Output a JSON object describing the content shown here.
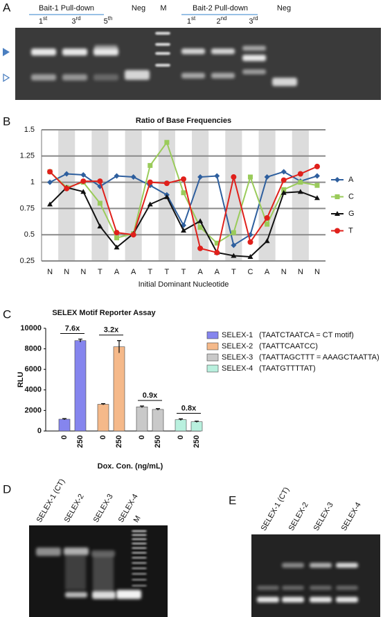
{
  "panel_a": {
    "label": "A",
    "groups": [
      {
        "title": "Bait-1 Pull-down",
        "lanes": [
          {
            "n": "1",
            "sup": "st"
          },
          {
            "n": "3",
            "sup": "rd"
          },
          {
            "n": "5",
            "sup": "th"
          }
        ]
      },
      {
        "title": "Bait-2 Pull-down",
        "lanes": [
          {
            "n": "1",
            "sup": "st"
          },
          {
            "n": "2",
            "sup": "nd"
          },
          {
            "n": "3",
            "sup": "rd"
          }
        ]
      }
    ],
    "neg_1": "Neg",
    "marker": "M",
    "neg_2": "Neg"
  },
  "chart_data": [
    {
      "type": "line",
      "panel": "B",
      "title": "Ratio of Base Frequencies",
      "x_label": "Initial Dominant Nucleotide",
      "categories": [
        "N",
        "N",
        "N",
        "T",
        "A",
        "A",
        "T",
        "T",
        "T",
        "A",
        "A",
        "T",
        "C",
        "A",
        "N",
        "N",
        "N"
      ],
      "ylim": [
        0.25,
        1.5
      ],
      "yticks": [
        0.25,
        0.5,
        0.75,
        1,
        1.25,
        1.5
      ],
      "grid": true,
      "legend": "right",
      "series": [
        {
          "name": "A",
          "color": "#2e5f9e",
          "marker": "diamond",
          "values": [
            1.0,
            1.08,
            1.07,
            0.96,
            1.06,
            1.05,
            0.97,
            0.88,
            0.59,
            1.05,
            1.06,
            0.4,
            0.5,
            1.05,
            1.1,
            1.01,
            1.06
          ]
        },
        {
          "name": "C",
          "color": "#9acb5a",
          "marker": "square",
          "values": [
            1.1,
            0.95,
            1.0,
            0.8,
            0.47,
            0.51,
            1.16,
            1.38,
            0.9,
            0.57,
            0.42,
            0.52,
            1.05,
            0.6,
            0.93,
            1.0,
            0.97
          ]
        },
        {
          "name": "G",
          "color": "#111111",
          "marker": "triangle",
          "values": [
            0.79,
            0.95,
            0.91,
            0.58,
            0.38,
            0.51,
            0.79,
            0.86,
            0.54,
            0.63,
            0.33,
            0.3,
            0.29,
            0.44,
            0.9,
            0.91,
            0.85
          ]
        },
        {
          "name": "T",
          "color": "#e0201b",
          "marker": "circle",
          "values": [
            1.1,
            0.94,
            1.01,
            1.01,
            0.52,
            0.5,
            1.0,
            0.99,
            1.03,
            0.37,
            0.33,
            1.05,
            0.43,
            0.66,
            1.02,
            1.08,
            1.15
          ]
        }
      ]
    },
    {
      "type": "bar",
      "panel": "C",
      "title": "SELEX Motif Reporter Assay",
      "x_label": "Dox. Con. (ng/mL)",
      "y_label": "RLU",
      "categories": [
        "0",
        "250"
      ],
      "ylim": [
        0,
        10000
      ],
      "yticks": [
        0,
        2000,
        4000,
        6000,
        8000,
        10000
      ],
      "legend": "right",
      "series": [
        {
          "name": "SELEX-1",
          "description": "(TAATCTAATCA = CT motif)",
          "color": "#8585ee",
          "values": [
            1150,
            8800
          ],
          "errors": [
            60,
            150
          ],
          "fold": "7.6x"
        },
        {
          "name": "SELEX-2",
          "description": "(TAATTCAATCC)",
          "color": "#f5b98a",
          "values": [
            2600,
            8200
          ],
          "errors": [
            60,
            600
          ],
          "fold": "3.2x"
        },
        {
          "name": "SELEX-3",
          "description": "(TAATTAGCTTT = AAAGCTAATTA)",
          "color": "#c9c9c9",
          "values": [
            2350,
            2100
          ],
          "errors": [
            80,
            80
          ],
          "fold": "0.9x"
        },
        {
          "name": "SELEX-4",
          "description": "(TAATGTTTTAT)",
          "color": "#b9f0de",
          "values": [
            1100,
            900
          ],
          "errors": [
            80,
            60
          ],
          "fold": "0.8x"
        }
      ]
    }
  ],
  "panel_d": {
    "label": "D",
    "lanes": [
      "SELEX-1 (CT)",
      "SELEX-2",
      "SELEX-3",
      "SELEX-4",
      "M"
    ]
  },
  "panel_e": {
    "label": "E",
    "lanes": [
      "SELEX-1 (CT)",
      "SELEX-2",
      "SELEX-3",
      "SELEX-4"
    ]
  }
}
